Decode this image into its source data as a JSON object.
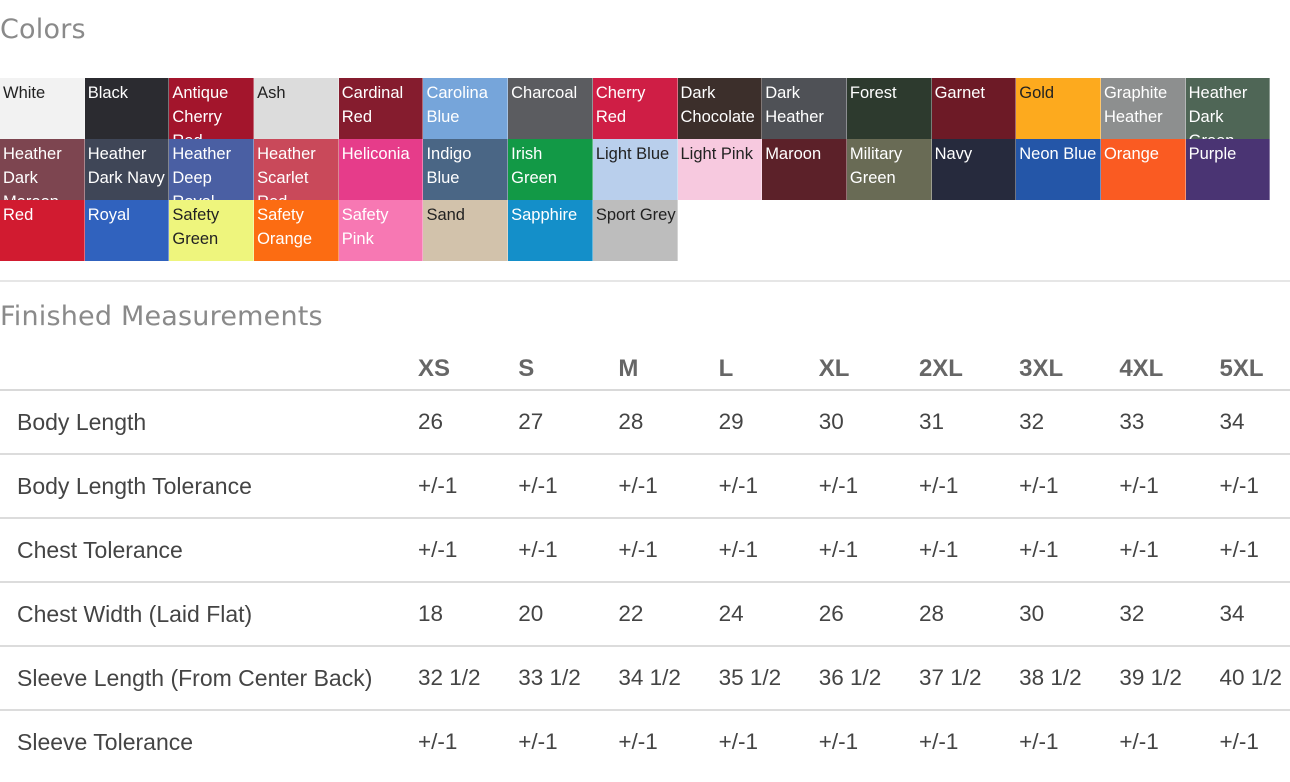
{
  "colors_section": {
    "title": "Colors",
    "swatches": [
      {
        "label": "White",
        "bg": "#f2f2f2",
        "fg": "#222222"
      },
      {
        "label": "Black",
        "bg": "#2b2b30",
        "fg": "#ffffff"
      },
      {
        "label": "Antique Cherry Red",
        "bg": "#a3152c",
        "fg": "#ffffff"
      },
      {
        "label": "Ash",
        "bg": "#dcdcdc",
        "fg": "#222222"
      },
      {
        "label": "Cardinal Red",
        "bg": "#851c2e",
        "fg": "#ffffff"
      },
      {
        "label": "Carolina Blue",
        "bg": "#76a5da",
        "fg": "#ffffff"
      },
      {
        "label": "Charcoal",
        "bg": "#5b5c60",
        "fg": "#ffffff"
      },
      {
        "label": "Cherry Red",
        "bg": "#cf1e45",
        "fg": "#ffffff"
      },
      {
        "label": "Dark Chocolate",
        "bg": "#3c2f2b",
        "fg": "#ffffff"
      },
      {
        "label": "Dark Heather",
        "bg": "#4f5156",
        "fg": "#ffffff"
      },
      {
        "label": "Forest",
        "bg": "#2d3a2e",
        "fg": "#ffffff"
      },
      {
        "label": "Garnet",
        "bg": "#6d1a26",
        "fg": "#ffffff"
      },
      {
        "label": "Gold",
        "bg": "#fdaa1e",
        "fg": "#222222"
      },
      {
        "label": "Graphite Heather",
        "bg": "#8d8f8f",
        "fg": "#ffffff"
      },
      {
        "label": "Heather Dark Green",
        "bg": "#4f6656",
        "fg": "#ffffff"
      },
      {
        "label": "Heather Dark Maroon",
        "bg": "#7d4550",
        "fg": "#ffffff"
      },
      {
        "label": "Heather Dark Navy",
        "bg": "#3f4657",
        "fg": "#ffffff"
      },
      {
        "label": "Heather Deep Royal",
        "bg": "#4a5fa3",
        "fg": "#ffffff"
      },
      {
        "label": "Heather Scarlet Red",
        "bg": "#c9495a",
        "fg": "#ffffff"
      },
      {
        "label": "Heliconia",
        "bg": "#e63c8a",
        "fg": "#ffffff"
      },
      {
        "label": "Indigo Blue",
        "bg": "#4a6685",
        "fg": "#ffffff"
      },
      {
        "label": "Irish Green",
        "bg": "#129946",
        "fg": "#ffffff"
      },
      {
        "label": "Light Blue",
        "bg": "#b9cfec",
        "fg": "#222222"
      },
      {
        "label": "Light Pink",
        "bg": "#f7c9df",
        "fg": "#222222"
      },
      {
        "label": "Maroon",
        "bg": "#5c2129",
        "fg": "#ffffff"
      },
      {
        "label": "Military Green",
        "bg": "#696b55",
        "fg": "#ffffff"
      },
      {
        "label": "Navy",
        "bg": "#262a3d",
        "fg": "#ffffff"
      },
      {
        "label": "Neon Blue",
        "bg": "#2456a8",
        "fg": "#ffffff"
      },
      {
        "label": "Orange",
        "bg": "#fa5b22",
        "fg": "#ffffff"
      },
      {
        "label": "Purple",
        "bg": "#4a3473",
        "fg": "#ffffff"
      },
      {
        "label": "Red",
        "bg": "#d11b30",
        "fg": "#ffffff"
      },
      {
        "label": "Royal",
        "bg": "#3062be",
        "fg": "#ffffff"
      },
      {
        "label": "Safety Green",
        "bg": "#eef57d",
        "fg": "#222222"
      },
      {
        "label": "Safety Orange",
        "bg": "#fc6c12",
        "fg": "#ffffff"
      },
      {
        "label": "Safety Pink",
        "bg": "#f778b3",
        "fg": "#ffffff"
      },
      {
        "label": "Sand",
        "bg": "#d2c2ab",
        "fg": "#222222"
      },
      {
        "label": "Sapphire",
        "bg": "#148fc9",
        "fg": "#ffffff"
      },
      {
        "label": "Sport Grey",
        "bg": "#bdbdbd",
        "fg": "#222222"
      }
    ]
  },
  "measurements_section": {
    "title": "Finished Measurements",
    "sizes": [
      "XS",
      "S",
      "M",
      "L",
      "XL",
      "2XL",
      "3XL",
      "4XL",
      "5XL"
    ],
    "rows": [
      {
        "label": "Body Length",
        "values": [
          "26",
          "27",
          "28",
          "29",
          "30",
          "31",
          "32",
          "33",
          "34"
        ]
      },
      {
        "label": "Body Length Tolerance",
        "values": [
          "+/-1",
          "+/-1",
          "+/-1",
          "+/-1",
          "+/-1",
          "+/-1",
          "+/-1",
          "+/-1",
          "+/-1"
        ]
      },
      {
        "label": "Chest Tolerance",
        "values": [
          "+/-1",
          "+/-1",
          "+/-1",
          "+/-1",
          "+/-1",
          "+/-1",
          "+/-1",
          "+/-1",
          "+/-1"
        ]
      },
      {
        "label": "Chest Width (Laid Flat)",
        "values": [
          "18",
          "20",
          "22",
          "24",
          "26",
          "28",
          "30",
          "32",
          "34"
        ]
      },
      {
        "label": "Sleeve Length (From Center Back)",
        "values": [
          "32 1/2",
          "33 1/2",
          "34 1/2",
          "35 1/2",
          "36 1/2",
          "37 1/2",
          "38 1/2",
          "39 1/2",
          "40 1/2"
        ]
      },
      {
        "label": "Sleeve Tolerance",
        "values": [
          "+/-1",
          "+/-1",
          "+/-1",
          "+/-1",
          "+/-1",
          "+/-1",
          "+/-1",
          "+/-1",
          "+/-1"
        ]
      }
    ]
  }
}
